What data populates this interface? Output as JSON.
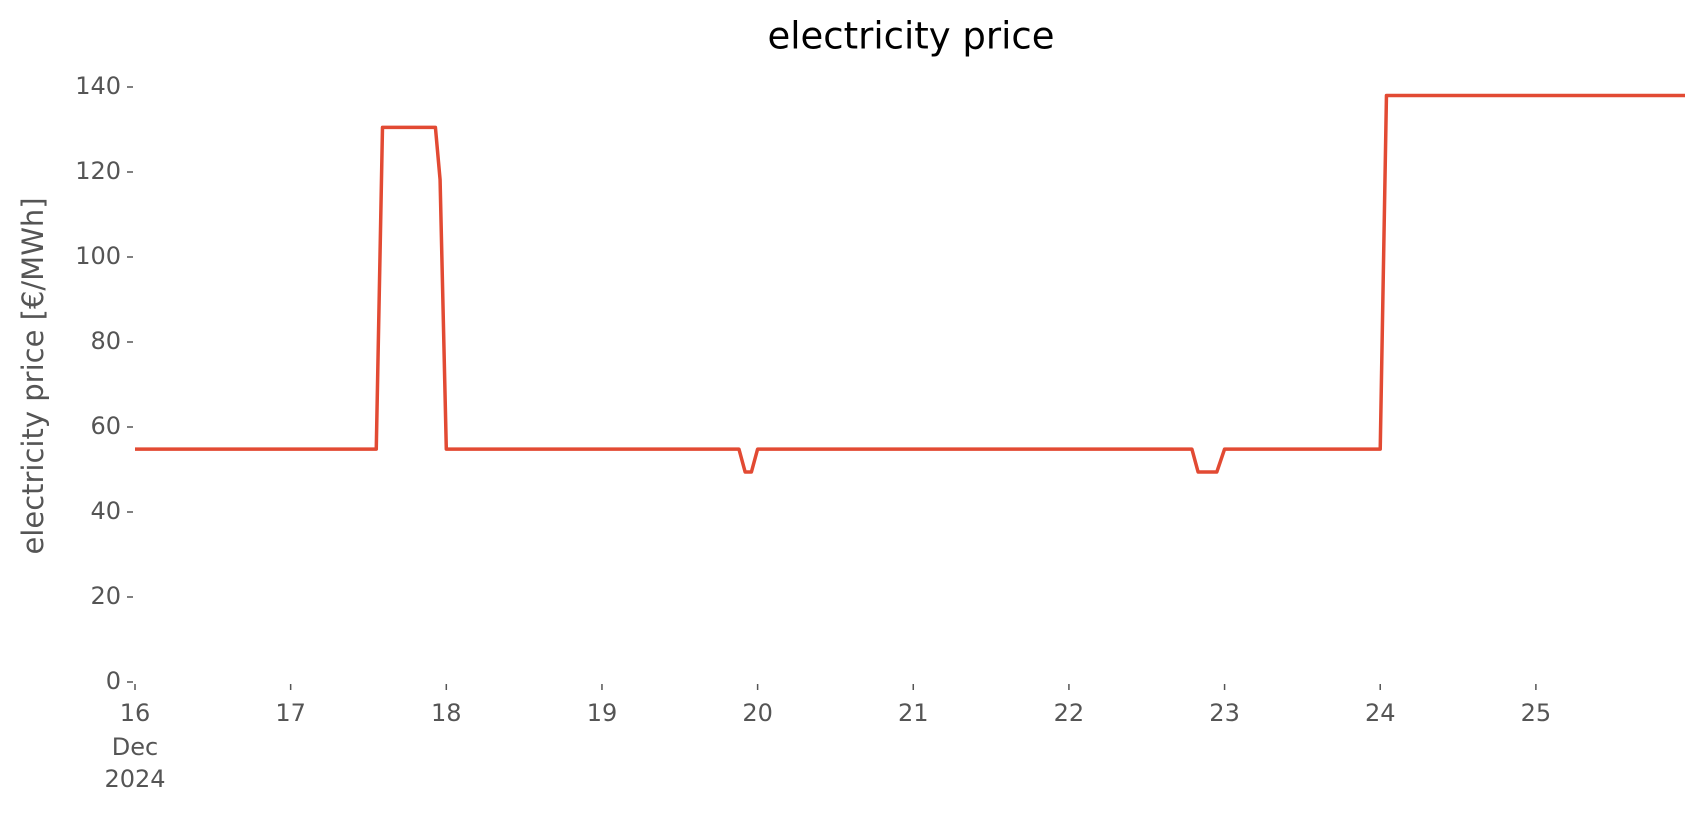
{
  "chart_data": {
    "type": "line",
    "title": "electricity price",
    "ylabel": "electricity price [€/MWh]",
    "x_month": "Dec",
    "x_year": "2024",
    "x": [
      16,
      17.55,
      17.59,
      17.93,
      17.96,
      18.0,
      19.88,
      19.92,
      19.96,
      20.0,
      22.79,
      22.83,
      22.95,
      23.0,
      24.0,
      24.04,
      25.958
    ],
    "series": [
      {
        "name": "electricity price",
        "color": "#e24a33",
        "values": [
          54.8,
          54.8,
          130.5,
          130.5,
          118.2,
          54.8,
          54.8,
          49.4,
          49.4,
          54.8,
          54.8,
          49.4,
          49.4,
          54.8,
          54.8,
          138.0,
          138.0
        ]
      }
    ],
    "xlim": [
      16,
      25.958
    ],
    "xticks": [
      16,
      17,
      18,
      19,
      20,
      21,
      22,
      23,
      24,
      25
    ],
    "ylim": [
      0,
      140
    ],
    "yticks": [
      0,
      20,
      40,
      60,
      80,
      100,
      120,
      140
    ],
    "grid": false
  }
}
